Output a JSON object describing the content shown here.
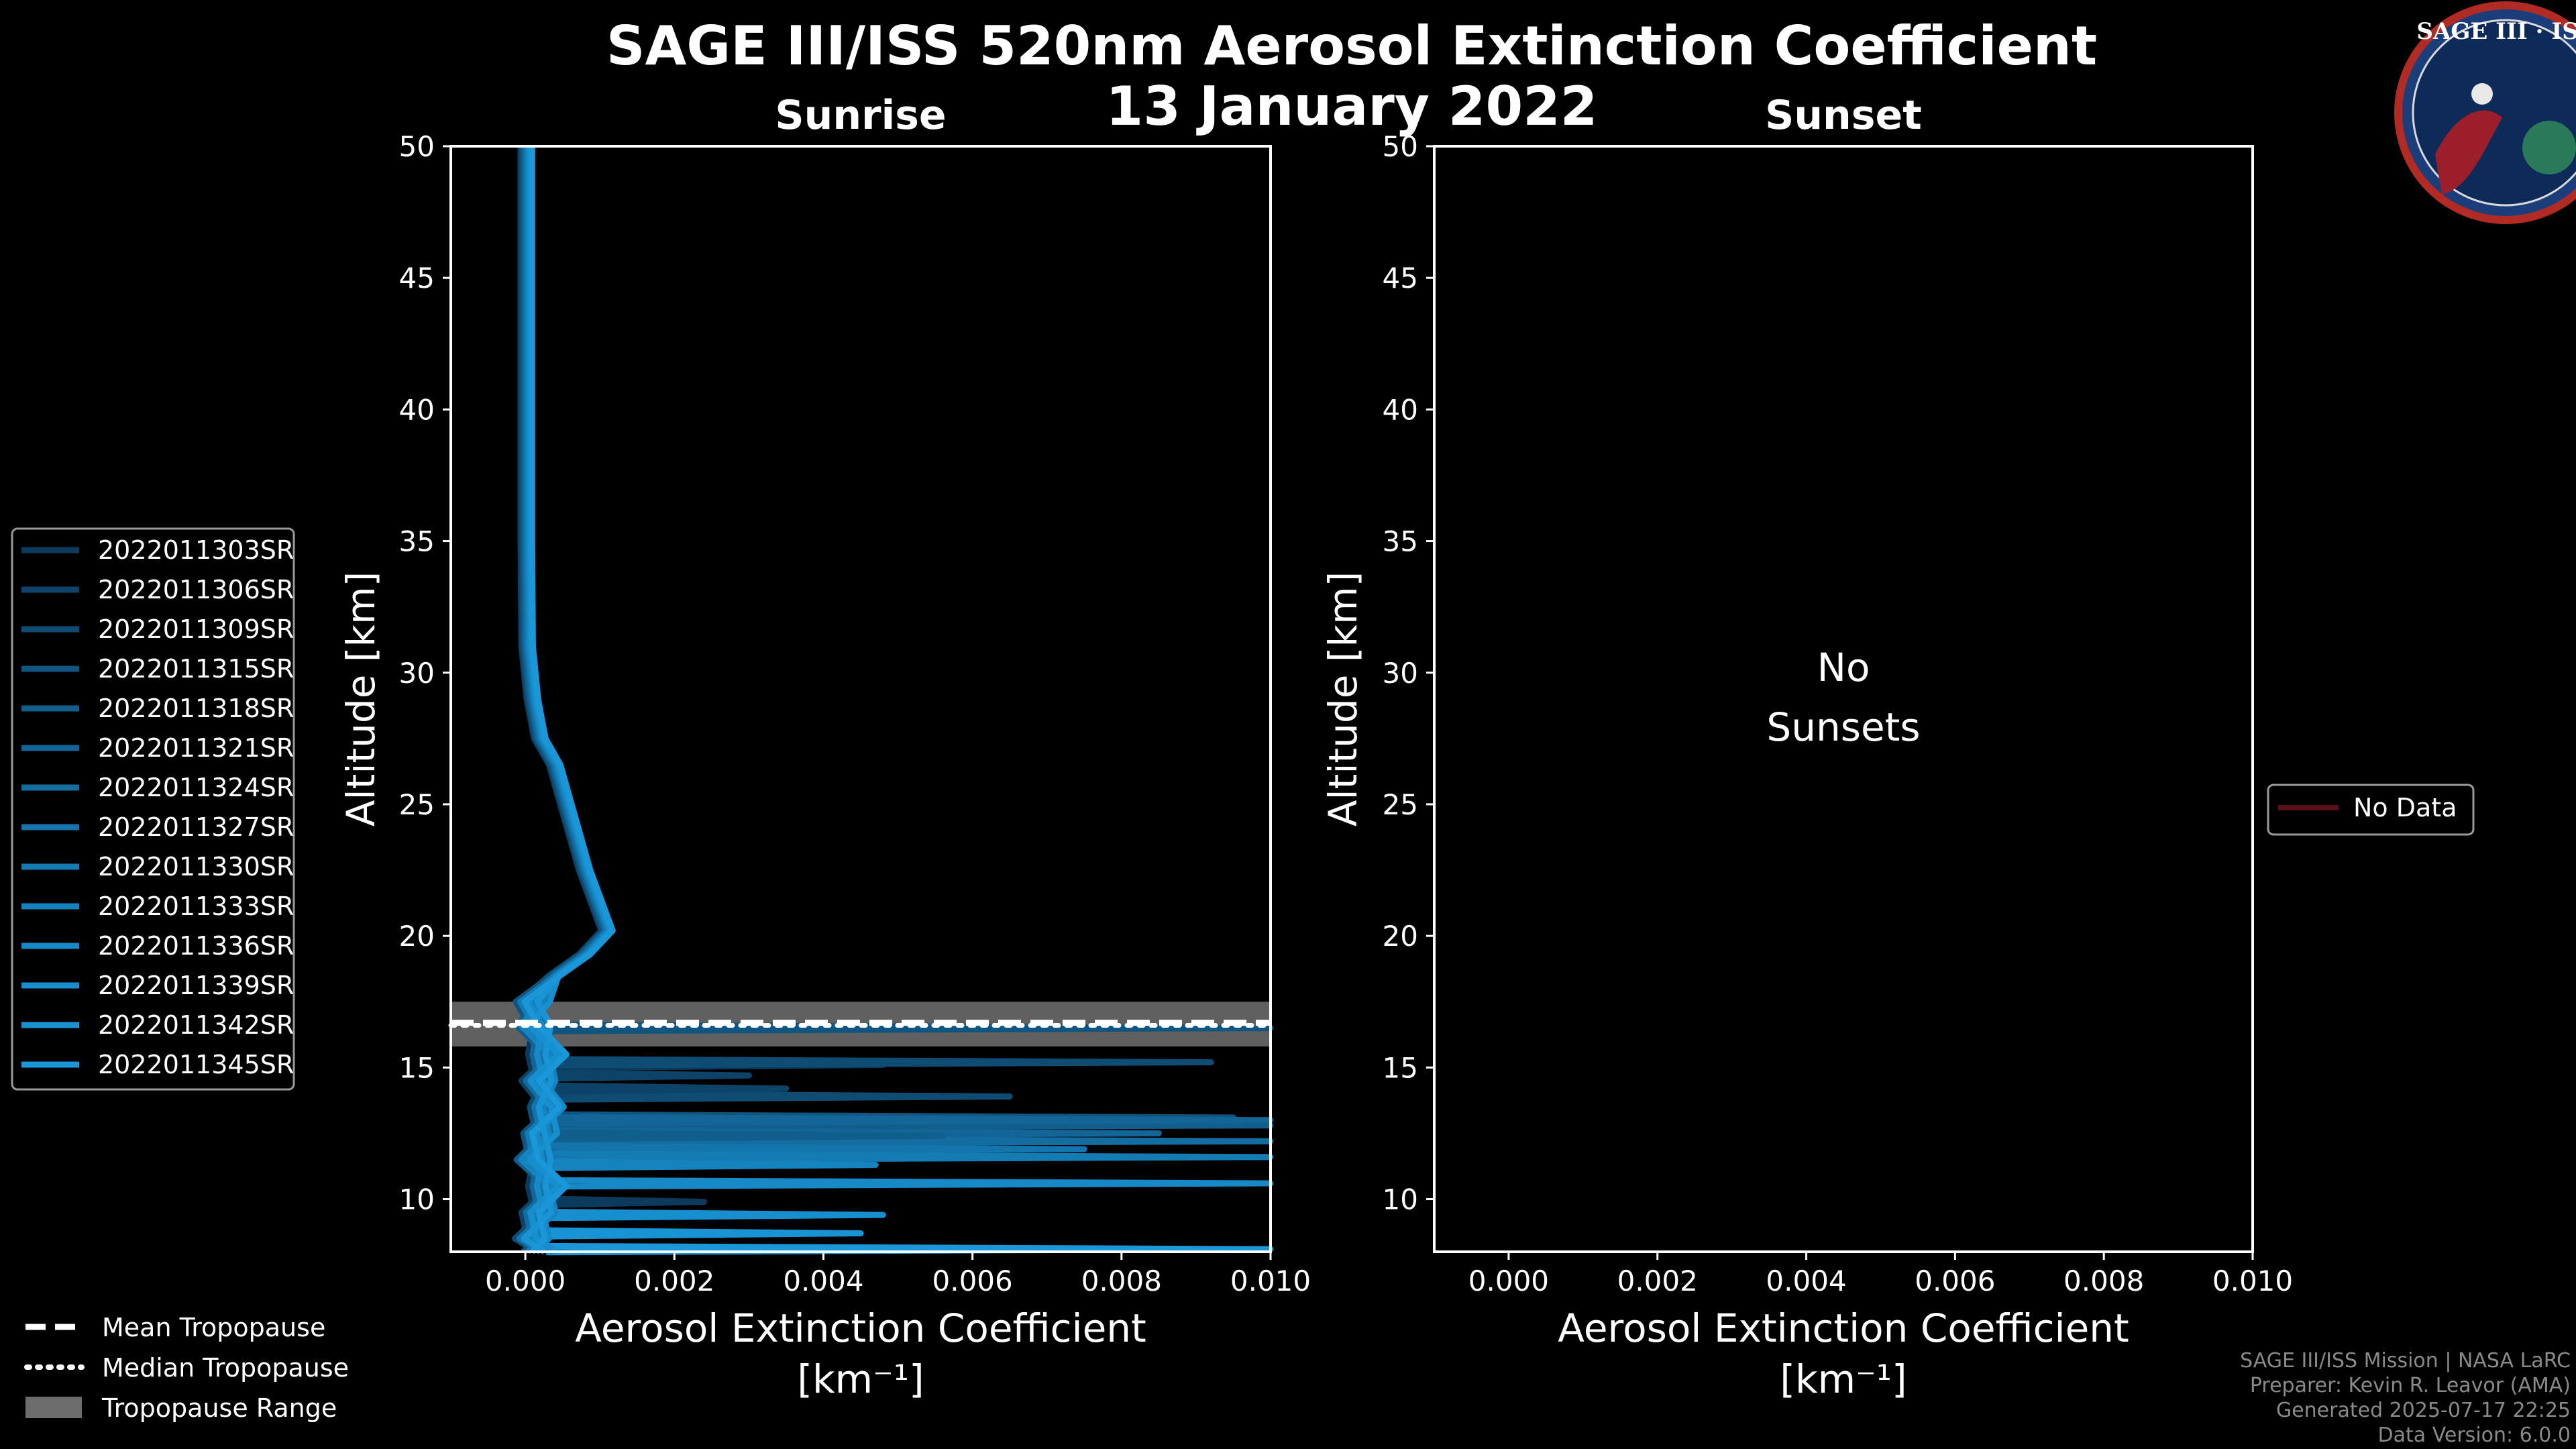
{
  "header": {
    "title": "SAGE III/ISS 520nm Aerosol Extinction Coefficient",
    "date": "13 January 2022"
  },
  "logo": {
    "text": "SAGE III · ISS"
  },
  "chart_data": [
    {
      "type": "line",
      "title": "Sunrise",
      "xlabel": "Aerosol Extinction Coefficient",
      "xunit": "[km⁻¹]",
      "ylabel": "Altitude [km]",
      "xlim": [
        -0.001,
        0.01
      ],
      "ylim": [
        8,
        50
      ],
      "xticks": [
        0.0,
        0.002,
        0.004,
        0.006,
        0.008,
        0.01
      ],
      "xtick_labels": [
        "0.000",
        "0.002",
        "0.004",
        "0.006",
        "0.008",
        "0.010"
      ],
      "yticks": [
        10,
        15,
        20,
        25,
        30,
        35,
        40,
        45,
        50
      ],
      "tropopause": {
        "mean": 16.7,
        "median": 16.6,
        "range": [
          15.8,
          17.5
        ]
      },
      "series": [
        {
          "name": "2022011303SR",
          "color": "#0b3a5c"
        },
        {
          "name": "2022011306SR",
          "color": "#0d4367"
        },
        {
          "name": "2022011309SR",
          "color": "#0f4c73"
        },
        {
          "name": "2022011315SR",
          "color": "#10557f"
        },
        {
          "name": "2022011318SR",
          "color": "#115d8b"
        },
        {
          "name": "2022011321SR",
          "color": "#126596"
        },
        {
          "name": "2022011324SR",
          "color": "#136da1"
        },
        {
          "name": "2022011327SR",
          "color": "#1375ab"
        },
        {
          "name": "2022011330SR",
          "color": "#147cb5"
        },
        {
          "name": "2022011333SR",
          "color": "#1583be"
        },
        {
          "name": "2022011336SR",
          "color": "#1689c6"
        },
        {
          "name": "2022011339SR",
          "color": "#178ecd"
        },
        {
          "name": "2022011342SR",
          "color": "#1893d3"
        },
        {
          "name": "2022011345SR",
          "color": "#1997d8"
        }
      ],
      "profile_points": [
        [
          2e-05,
          50
        ],
        [
          2e-05,
          45
        ],
        [
          2e-05,
          40
        ],
        [
          2e-05,
          35
        ],
        [
          3e-05,
          31
        ],
        [
          0.0001,
          29
        ],
        [
          0.0002,
          27.5
        ],
        [
          0.0004,
          26.5
        ],
        [
          0.0006,
          24.5
        ],
        [
          0.0008,
          22.5
        ],
        [
          0.0011,
          20.2
        ],
        [
          0.0008,
          19.3
        ],
        [
          0.0004,
          18.5
        ],
        [
          0.0001,
          17.5
        ],
        [
          0.0001,
          16.6
        ],
        [
          0.0003,
          15.5
        ],
        [
          0.0002,
          14.5
        ],
        [
          0.0003,
          13.5
        ],
        [
          0.0002,
          12.5
        ],
        [
          0.0001,
          11.5
        ],
        [
          0.0003,
          10.5
        ],
        [
          0.0002,
          9.5
        ],
        [
          0.0001,
          8.5
        ],
        [
          0.0002,
          8
        ]
      ],
      "excursions": [
        [
          0.0048,
          15.1
        ],
        [
          0.003,
          14.7
        ],
        [
          0.0065,
          13.9
        ],
        [
          0.0095,
          13.1
        ],
        [
          0.0102,
          12.8
        ],
        [
          0.0085,
          12.5
        ],
        [
          0.0101,
          12.2
        ],
        [
          0.0075,
          11.9
        ],
        [
          0.0101,
          11.6
        ],
        [
          0.0047,
          11.3
        ],
        [
          0.0102,
          10.6
        ],
        [
          0.0048,
          9.4
        ],
        [
          0.0045,
          8.7
        ],
        [
          0.0101,
          8.1
        ],
        [
          0.0024,
          9.9
        ],
        [
          0.0035,
          14.2
        ],
        [
          0.0092,
          15.2
        ],
        [
          0.0101,
          16.5
        ],
        [
          0.0056,
          12.4
        ],
        [
          0.0101,
          13.0
        ]
      ]
    },
    {
      "type": "line",
      "title": "Sunset",
      "xlabel": "Aerosol Extinction Coefficient",
      "xunit": "[km⁻¹]",
      "ylabel": "Altitude [km]",
      "xlim": [
        -0.001,
        0.01
      ],
      "ylim": [
        8,
        50
      ],
      "xticks": [
        0.0,
        0.002,
        0.004,
        0.006,
        0.008,
        0.01
      ],
      "xtick_labels": [
        "0.000",
        "0.002",
        "0.004",
        "0.006",
        "0.008",
        "0.010"
      ],
      "yticks": [
        10,
        15,
        20,
        25,
        30,
        35,
        40,
        45,
        50
      ],
      "annotation": [
        "No",
        "Sunsets"
      ],
      "series": [
        {
          "name": "No Data",
          "color": "#5a0f14"
        }
      ]
    }
  ],
  "tropopause_legend": [
    {
      "label": "Mean Tropopause",
      "style": "dashed"
    },
    {
      "label": "Median Tropopause",
      "style": "dotted"
    },
    {
      "label": "Tropopause Range",
      "style": "patch"
    }
  ],
  "footer": [
    "SAGE III/ISS Mission | NASA LaRC",
    "Preparer: Kevin R. Leavor (AMA)",
    "Generated 2025-07-17 22:25",
    "Data Version: 6.0.0"
  ]
}
